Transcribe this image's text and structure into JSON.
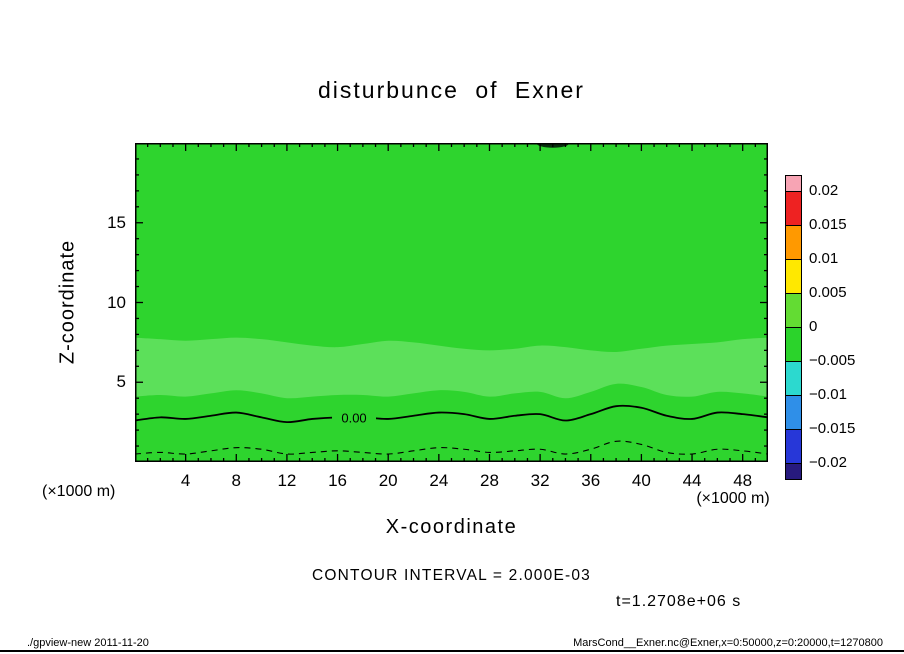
{
  "chart_data": {
    "type": "filled_contour",
    "title": "disturbunce of Exner",
    "xlabel": "X-coordinate",
    "ylabel": "Z-coordinate",
    "y_axis_units": "(×1000 m)",
    "x_axis_units": "(×1000 m)",
    "xlim": [
      0,
      50
    ],
    "ylim": [
      0,
      20
    ],
    "x_ticks": [
      4,
      8,
      12,
      16,
      20,
      24,
      28,
      32,
      36,
      40,
      44,
      48
    ],
    "x_minor_step": 1,
    "y_ticks": [
      5,
      10,
      15
    ],
    "y_minor_step": 1,
    "contour_note": "CONTOUR INTERVAL = 2.000E-03",
    "time_label": "t=1.2708e+06 s",
    "zero_contour_label": "0.00",
    "colorbar": {
      "labels": [
        "0.02",
        "0.015",
        "0.01",
        "0.005",
        "0",
        "−0.005",
        "−0.01",
        "−0.015",
        "−0.02"
      ],
      "colors_top_to_bottom": [
        "#f7a4b4",
        "#ee2222",
        "#ff9900",
        "#ffe800",
        "#63dc33",
        "#2bd32b",
        "#2cd9cf",
        "#2f8fe8",
        "#2737d8",
        "#271a7e"
      ]
    },
    "field": {
      "base_color": "#2ed42e",
      "band_color": "#5ce05a",
      "blob_color": "#06300c",
      "contour_color": "#000000",
      "band_top_z": [
        7.8,
        7.7,
        7.6,
        7.7,
        7.8,
        7.7,
        7.5,
        7.3,
        7.2,
        7.4,
        7.6,
        7.5,
        7.3,
        7.1,
        7.0,
        7.1,
        7.3,
        7.2,
        7.0,
        6.9,
        7.1,
        7.3,
        7.4,
        7.5,
        7.7,
        7.8
      ],
      "band_bottom_z": [
        4.1,
        4.2,
        4.1,
        4.3,
        4.5,
        4.3,
        4.0,
        4.1,
        4.2,
        4.2,
        4.1,
        4.3,
        4.5,
        4.4,
        4.1,
        4.3,
        4.4,
        4.0,
        4.4,
        4.9,
        4.7,
        4.2,
        4.1,
        4.4,
        4.3,
        4.1
      ],
      "zero_contour_z": [
        2.6,
        2.8,
        2.7,
        2.9,
        3.1,
        2.8,
        2.5,
        2.7,
        2.8,
        2.8,
        2.7,
        2.9,
        3.1,
        3.0,
        2.7,
        2.9,
        3.0,
        2.6,
        3.0,
        3.5,
        3.4,
        2.9,
        2.7,
        3.1,
        3.0,
        2.8
      ],
      "dashed_contour_z": [
        0.5,
        0.6,
        0.5,
        0.7,
        0.9,
        0.8,
        0.5,
        0.6,
        0.7,
        0.6,
        0.5,
        0.7,
        0.9,
        0.8,
        0.6,
        0.7,
        0.8,
        0.5,
        0.8,
        1.3,
        1.1,
        0.6,
        0.5,
        0.8,
        0.7,
        0.5
      ],
      "zero_label_pos": {
        "x": 17.3,
        "z": 2.8
      },
      "top_blob": {
        "x_center": 33,
        "rx_units": 1.3,
        "ry_units": 0.3
      }
    }
  },
  "footer": {
    "left": "./gpview-new  2011-11-20",
    "right": "MarsCond__Exner.nc@Exner,x=0:50000,z=0:20000,t=1270800"
  }
}
